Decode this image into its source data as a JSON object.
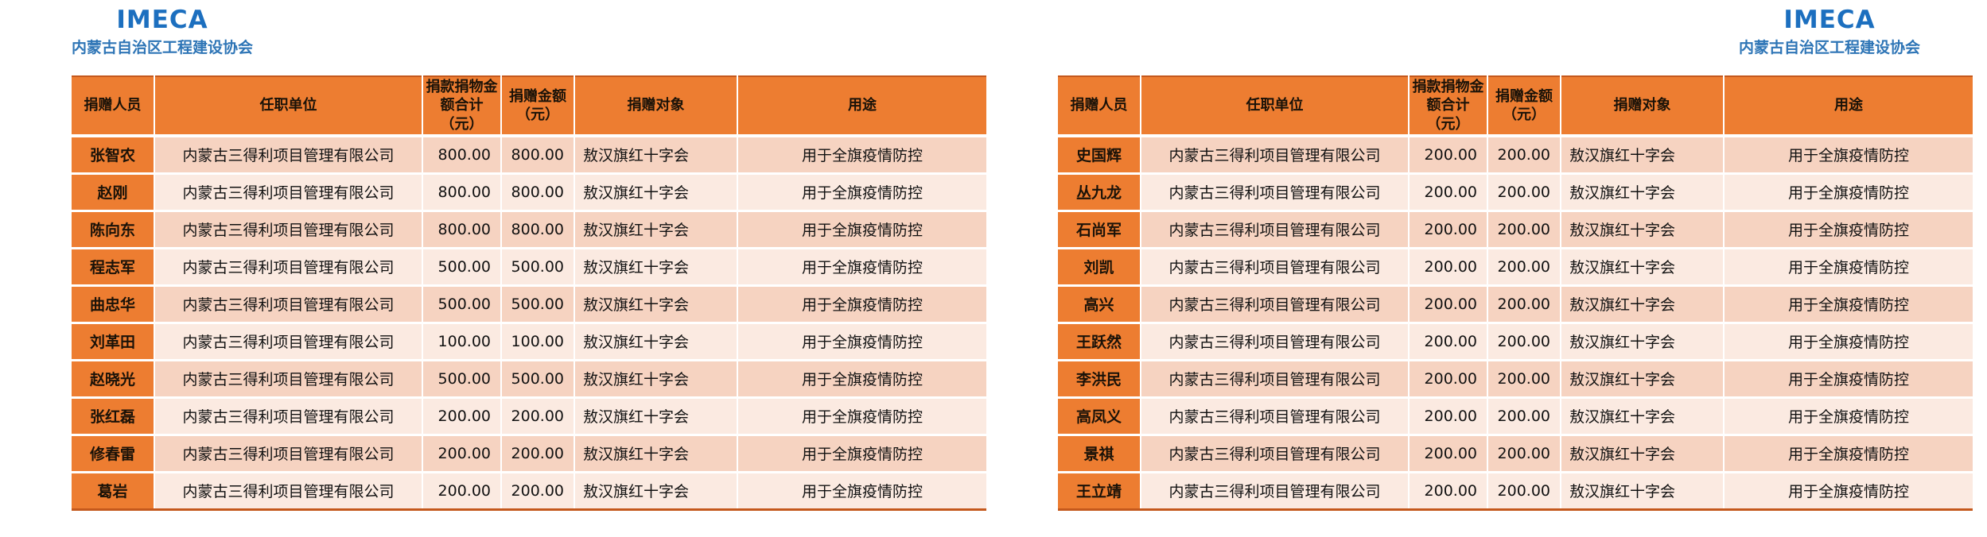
{
  "page": {
    "left_header": {
      "logo": "IMECA",
      "org_name": "内蒙古自治区工程建设协会"
    },
    "right_header": {
      "logo": "IMECA",
      "org_name": "内蒙古自治区工程建设协会"
    }
  },
  "columns": [
    "捐赠人员",
    "任职单位",
    "捐款捐物金额合计（元）",
    "捐赠金额（元）",
    "捐赠对象",
    "用途"
  ],
  "tables": [
    {
      "rows": [
        [
          "张智农",
          "内蒙古三得利项目管理有限公司",
          "800.00",
          "800.00",
          "敖汉旗红十字会",
          "用于全旗疫情防控"
        ],
        [
          "赵刚",
          "内蒙古三得利项目管理有限公司",
          "800.00",
          "800.00",
          "敖汉旗红十字会",
          "用于全旗疫情防控"
        ],
        [
          "陈向东",
          "内蒙古三得利项目管理有限公司",
          "800.00",
          "800.00",
          "敖汉旗红十字会",
          "用于全旗疫情防控"
        ],
        [
          "程志军",
          "内蒙古三得利项目管理有限公司",
          "500.00",
          "500.00",
          "敖汉旗红十字会",
          "用于全旗疫情防控"
        ],
        [
          "曲忠华",
          "内蒙古三得利项目管理有限公司",
          "500.00",
          "500.00",
          "敖汉旗红十字会",
          "用于全旗疫情防控"
        ],
        [
          "刘革田",
          "内蒙古三得利项目管理有限公司",
          "100.00",
          "100.00",
          "敖汉旗红十字会",
          "用于全旗疫情防控"
        ],
        [
          "赵晓光",
          "内蒙古三得利项目管理有限公司",
          "500.00",
          "500.00",
          "敖汉旗红十字会",
          "用于全旗疫情防控"
        ],
        [
          "张红磊",
          "内蒙古三得利项目管理有限公司",
          "200.00",
          "200.00",
          "敖汉旗红十字会",
          "用于全旗疫情防控"
        ],
        [
          "修春雷",
          "内蒙古三得利项目管理有限公司",
          "200.00",
          "200.00",
          "敖汉旗红十字会",
          "用于全旗疫情防控"
        ],
        [
          "葛岩",
          "内蒙古三得利项目管理有限公司",
          "200.00",
          "200.00",
          "敖汉旗红十字会",
          "用于全旗疫情防控"
        ]
      ]
    },
    {
      "rows": [
        [
          "史国辉",
          "内蒙古三得利项目管理有限公司",
          "200.00",
          "200.00",
          "敖汉旗红十字会",
          "用于全旗疫情防控"
        ],
        [
          "丛九龙",
          "内蒙古三得利项目管理有限公司",
          "200.00",
          "200.00",
          "敖汉旗红十字会",
          "用于全旗疫情防控"
        ],
        [
          "石尚军",
          "内蒙古三得利项目管理有限公司",
          "200.00",
          "200.00",
          "敖汉旗红十字会",
          "用于全旗疫情防控"
        ],
        [
          "刘凯",
          "内蒙古三得利项目管理有限公司",
          "200.00",
          "200.00",
          "敖汉旗红十字会",
          "用于全旗疫情防控"
        ],
        [
          "高兴",
          "内蒙古三得利项目管理有限公司",
          "200.00",
          "200.00",
          "敖汉旗红十字会",
          "用于全旗疫情防控"
        ],
        [
          "王跃然",
          "内蒙古三得利项目管理有限公司",
          "200.00",
          "200.00",
          "敖汉旗红十字会",
          "用于全旗疫情防控"
        ],
        [
          "李洪民",
          "内蒙古三得利项目管理有限公司",
          "200.00",
          "200.00",
          "敖汉旗红十字会",
          "用于全旗疫情防控"
        ],
        [
          "高凤义",
          "内蒙古三得利项目管理有限公司",
          "200.00",
          "200.00",
          "敖汉旗红十字会",
          "用于全旗疫情防控"
        ],
        [
          "景祺",
          "内蒙古三得利项目管理有限公司",
          "200.00",
          "200.00",
          "敖汉旗红十字会",
          "用于全旗疫情防控"
        ],
        [
          "王立靖",
          "内蒙古三得利项目管理有限公司",
          "200.00",
          "200.00",
          "敖汉旗红十字会",
          "用于全旗疫情防控"
        ]
      ]
    }
  ],
  "colors": {
    "accent_orange": "#ed7d31",
    "band_dark": "#f6d3c1",
    "band_light": "#fbeae1",
    "title_blue": "#1c6fbf",
    "subtitle_blue": "#2e75b6",
    "table_edge_border": "#c4581c"
  }
}
